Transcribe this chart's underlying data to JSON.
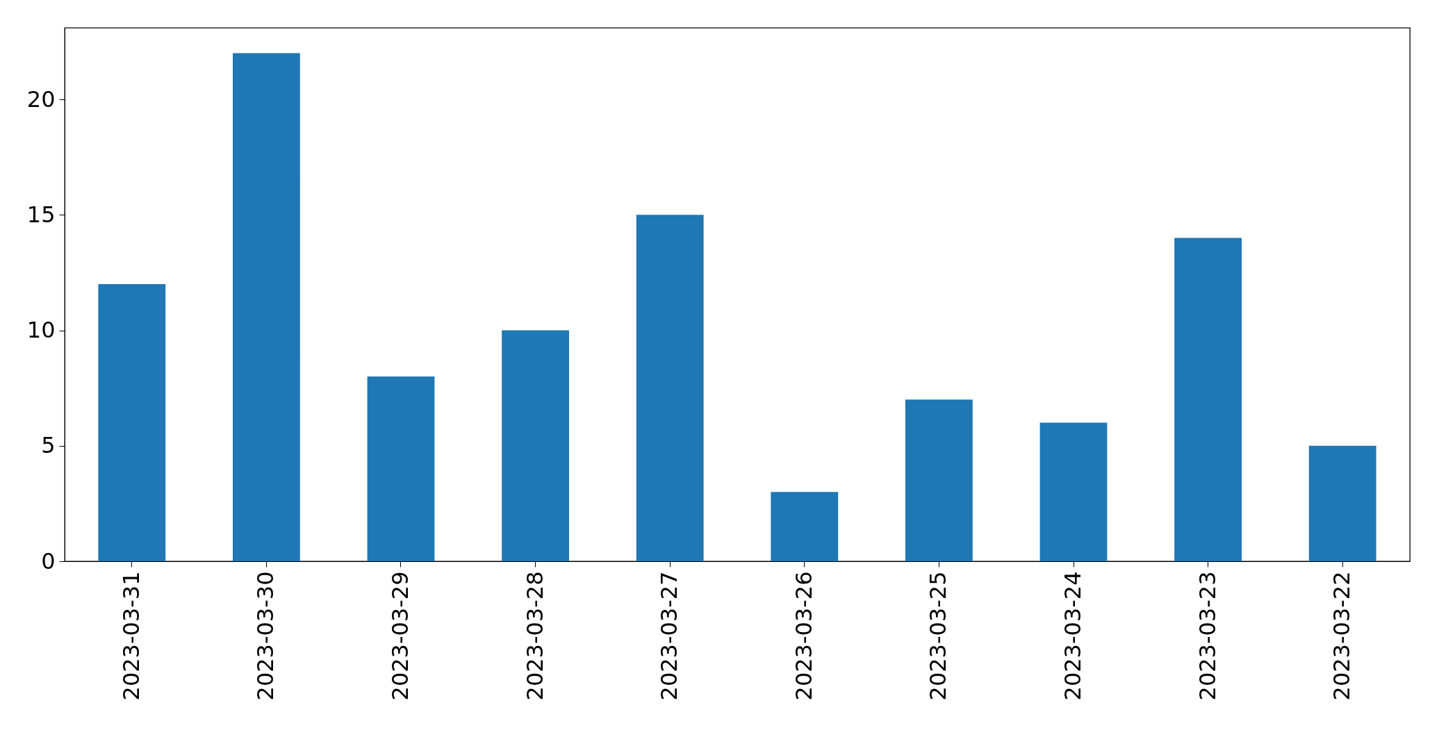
{
  "chart_data": {
    "type": "bar",
    "categories": [
      "2023-03-31",
      "2023-03-30",
      "2023-03-29",
      "2023-03-28",
      "2023-03-27",
      "2023-03-26",
      "2023-03-25",
      "2023-03-24",
      "2023-03-23",
      "2023-03-22"
    ],
    "values": [
      12,
      22,
      8,
      10,
      15,
      3,
      7,
      6,
      14,
      5
    ],
    "color": "#1f77b4",
    "ylim": [
      0,
      23.1
    ],
    "yticks": [
      0,
      5,
      10,
      15,
      20
    ],
    "grid": false
  }
}
